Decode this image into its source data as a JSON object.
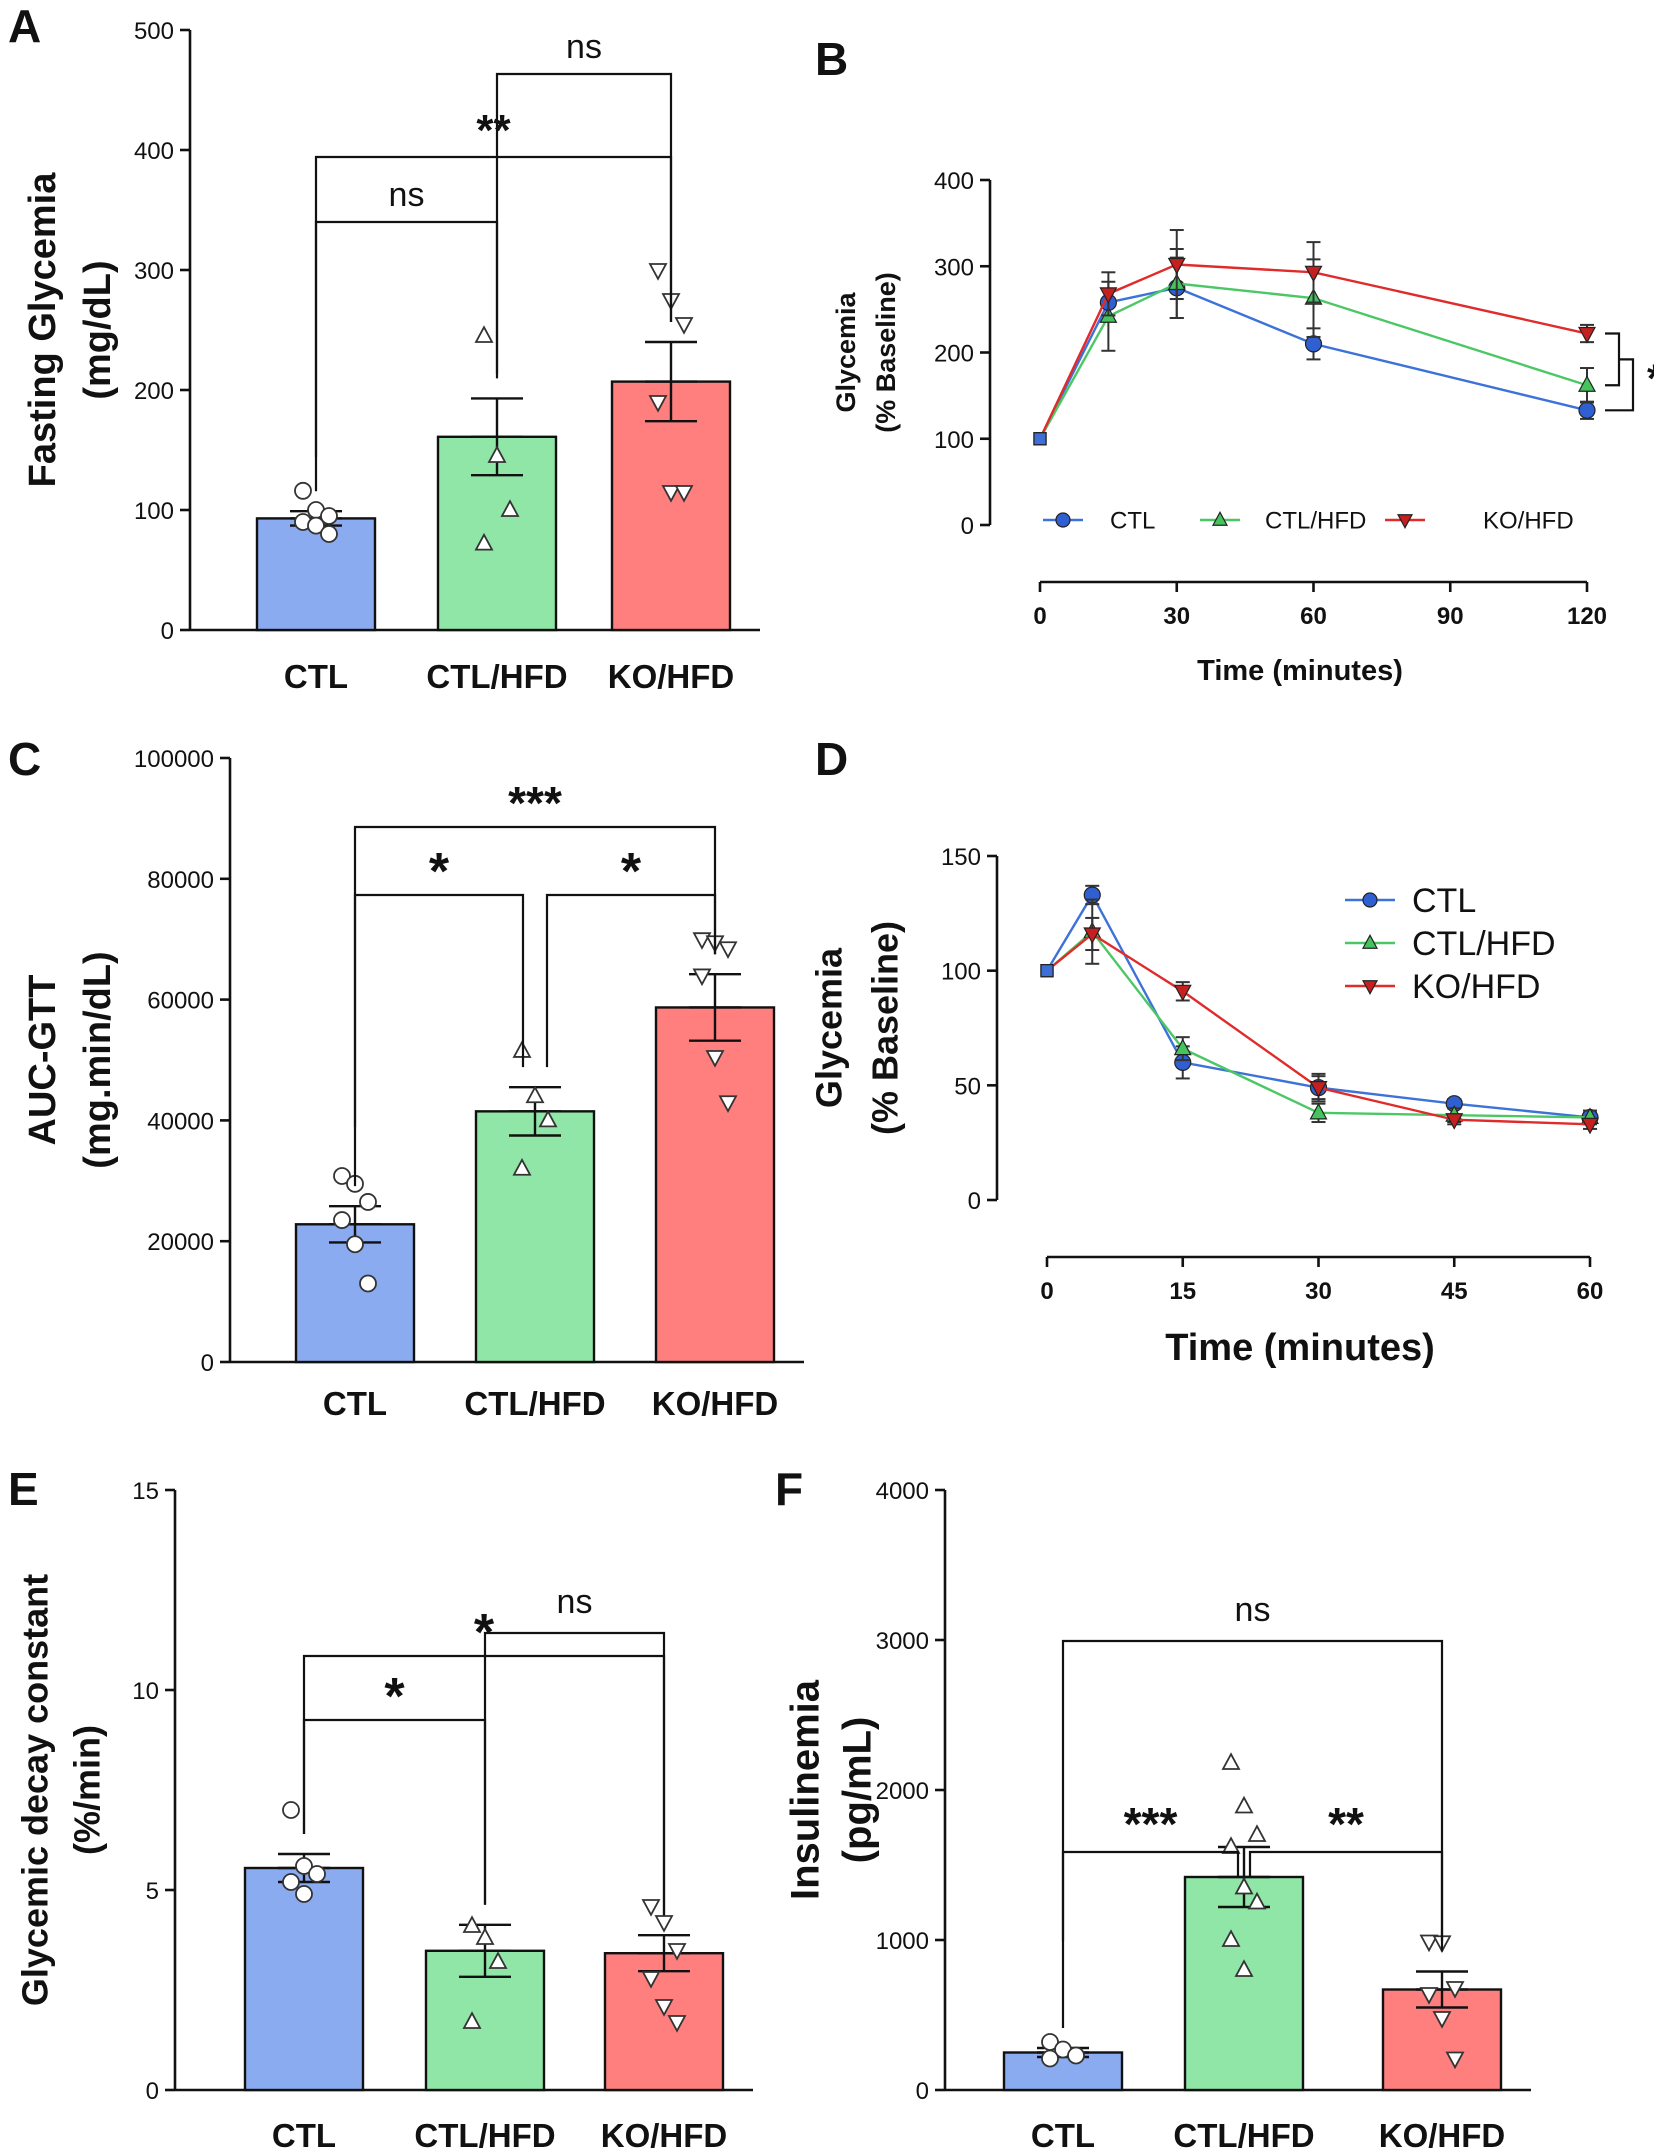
{
  "panels": {
    "A": {
      "letter": "A",
      "chart_data": {
        "type": "bar",
        "title": "",
        "ylabel_lines": [
          "Fasting Glycemia",
          "(mg/dL)"
        ],
        "xlabel": "",
        "categories": [
          "CTL",
          "CTL/HFD",
          "KO/HFD"
        ],
        "colors": [
          "#8aabf0",
          "#8fe6a6",
          "#ff7f7f"
        ],
        "markers": [
          "circle",
          "triangle-up",
          "triangle-down"
        ],
        "means": [
          93,
          161,
          207
        ],
        "sem": [
          6,
          32,
          33
        ],
        "points": [
          [
            116,
            100,
            95,
            90,
            87,
            80
          ],
          [
            245,
            145,
            100,
            72
          ],
          [
            300,
            275,
            255,
            190,
            115,
            115
          ]
        ],
        "ylim": [
          0,
          500
        ],
        "yticks": [
          0,
          100,
          200,
          300,
          400,
          500
        ],
        "ytick_labels": [
          "0",
          "100",
          "200",
          "300",
          "400",
          "500"
        ],
        "comparisons": [
          {
            "from": 0,
            "to": 1,
            "label": "ns"
          },
          {
            "from": 0,
            "to": 2,
            "label": "**"
          },
          {
            "from": 1,
            "to": 2,
            "label": "ns"
          }
        ]
      }
    },
    "B": {
      "letter": "B",
      "chart_data": {
        "type": "line",
        "ylabel_lines": [
          "Glycemia",
          "(% Baseline)"
        ],
        "xlabel": "Time (minutes)",
        "x": [
          0,
          15,
          30,
          60,
          120
        ],
        "xticks": [
          0,
          30,
          60,
          90,
          120
        ],
        "xtick_labels": [
          "0",
          "30",
          "60",
          "90",
          "120"
        ],
        "yticks": [
          0,
          100,
          200,
          300,
          400
        ],
        "ytick_labels": [
          "0",
          "100",
          "200",
          "300",
          "400"
        ],
        "ylim": [
          0,
          400
        ],
        "xlim": [
          0,
          120
        ],
        "series": [
          {
            "name": "CTL",
            "color": "#2f5fd0",
            "line_color": "#3d72d9",
            "marker": "circle",
            "values": [
              100,
              258,
              275,
              210,
              133
            ],
            "err": [
              0,
              15,
              35,
              18,
              10
            ]
          },
          {
            "name": "CTL/HFD",
            "color": "#45c45e",
            "line_color": "#4cc766",
            "marker": "triangle-up",
            "values": [
              100,
              242,
              280,
              263,
              162
            ],
            "err": [
              0,
              40,
              40,
              45,
              20
            ]
          },
          {
            "name": "KO/HFD",
            "color": "#c42020",
            "line_color": "#e02b2b",
            "marker": "triangle-down",
            "values": [
              100,
              268,
              302,
              293,
              222
            ],
            "err": [
              0,
              25,
              40,
              35,
              10
            ]
          }
        ],
        "significance": "*"
      }
    },
    "C": {
      "letter": "C",
      "chart_data": {
        "type": "bar",
        "ylabel_lines": [
          "AUC-GTT",
          "(mg.min/dL)"
        ],
        "xlabel": "",
        "categories": [
          "CTL",
          "CTL/HFD",
          "KO/HFD"
        ],
        "colors": [
          "#8aabf0",
          "#8fe6a6",
          "#ff7f7f"
        ],
        "markers": [
          "circle",
          "triangle-up",
          "triangle-down"
        ],
        "means": [
          22800,
          41500,
          58700
        ],
        "sem": [
          3000,
          4000,
          5500
        ],
        "points": [
          [
            30800,
            29500,
            26500,
            23500,
            19500,
            13000
          ],
          [
            51500,
            44000,
            40000,
            32000
          ],
          [
            70000,
            69500,
            68500,
            64000,
            50500,
            43000
          ]
        ],
        "ylim": [
          0,
          100000
        ],
        "yticks": [
          0,
          20000,
          40000,
          60000,
          80000,
          100000
        ],
        "ytick_labels": [
          "0",
          "20000",
          "40000",
          "60000",
          "80000",
          "100000"
        ],
        "comparisons": [
          {
            "from": 0,
            "to": 1,
            "label": "*"
          },
          {
            "from": 1,
            "to": 2,
            "label": "*"
          },
          {
            "from": 0,
            "to": 2,
            "label": "***"
          }
        ]
      }
    },
    "D": {
      "letter": "D",
      "chart_data": {
        "type": "line",
        "ylabel_lines": [
          "Glycemia",
          "(% Baseline)"
        ],
        "xlabel": "Time (minutes)",
        "x": [
          0,
          5,
          15,
          30,
          45,
          60
        ],
        "xticks": [
          0,
          15,
          30,
          45,
          60
        ],
        "xtick_labels": [
          "0",
          "15",
          "30",
          "45",
          "60"
        ],
        "yticks": [
          0,
          50,
          100,
          150
        ],
        "ytick_labels": [
          "0",
          "50",
          "100",
          "150"
        ],
        "ylim": [
          0,
          150
        ],
        "xlim": [
          0,
          60
        ],
        "series": [
          {
            "name": "CTL",
            "color": "#2f5fd0",
            "line_color": "#3d72d9",
            "marker": "circle",
            "values": [
              100,
              133,
              60,
              49,
              42,
              36
            ],
            "err": [
              0,
              4,
              7,
              6,
              2,
              2
            ]
          },
          {
            "name": "CTL/HFD",
            "color": "#45c45e",
            "line_color": "#4cc766",
            "marker": "triangle-up",
            "values": [
              100,
              117,
              66,
              38,
              37,
              36
            ],
            "err": [
              0,
              14,
              5,
              4,
              3,
              3
            ]
          },
          {
            "name": "KO/HFD",
            "color": "#c42020",
            "line_color": "#e02b2b",
            "marker": "triangle-down",
            "values": [
              100,
              116,
              91,
              49,
              35,
              33
            ],
            "err": [
              0,
              7,
              4,
              5,
              2,
              2
            ]
          }
        ]
      }
    },
    "E": {
      "letter": "E",
      "chart_data": {
        "type": "bar",
        "ylabel_lines": [
          "Glycemic decay constant",
          "(%/min)"
        ],
        "xlabel": "",
        "categories": [
          "CTL",
          "CTL/HFD",
          "KO/HFD"
        ],
        "colors": [
          "#8aabf0",
          "#8fe6a6",
          "#ff7f7f"
        ],
        "markers": [
          "circle",
          "triangle-up",
          "triangle-down"
        ],
        "means": [
          5.55,
          3.48,
          3.42
        ],
        "sem": [
          0.35,
          0.65,
          0.45
        ],
        "points": [
          [
            7.0,
            5.6,
            5.4,
            5.2,
            4.9
          ],
          [
            4.1,
            3.8,
            3.2,
            1.7
          ],
          [
            4.6,
            4.2,
            3.5,
            2.8,
            2.1,
            1.7
          ]
        ],
        "ylim": [
          0,
          15
        ],
        "yticks": [
          0,
          5,
          10,
          15
        ],
        "ytick_labels": [
          "0",
          "5",
          "10",
          "15"
        ],
        "comparisons": [
          {
            "from": 0,
            "to": 1,
            "label": "*"
          },
          {
            "from": 0,
            "to": 2,
            "label": "*"
          },
          {
            "from": 1,
            "to": 2,
            "label": "ns"
          }
        ]
      }
    },
    "F": {
      "letter": "F",
      "chart_data": {
        "type": "bar",
        "ylabel_lines": [
          "Insulinemia",
          "(pg/mL)"
        ],
        "xlabel": "",
        "categories": [
          "CTL",
          "CTL/HFD",
          "KO/HFD"
        ],
        "colors": [
          "#8aabf0",
          "#8fe6a6",
          "#ff7f7f"
        ],
        "markers": [
          "circle",
          "triangle-up",
          "triangle-down"
        ],
        "means": [
          250,
          1420,
          670
        ],
        "sem": [
          30,
          200,
          120
        ],
        "points": [
          [
            320,
            270,
            230,
            210
          ],
          [
            2180,
            1890,
            1700,
            1620,
            1350,
            1250,
            1000,
            800
          ],
          [
            990,
            985,
            680,
            640,
            480,
            210
          ]
        ],
        "ylim": [
          0,
          4000
        ],
        "yticks": [
          0,
          1000,
          2000,
          3000,
          4000
        ],
        "ytick_labels": [
          "0",
          "1000",
          "2000",
          "3000",
          "4000"
        ],
        "comparisons": [
          {
            "from": 0,
            "to": 1,
            "label": "***"
          },
          {
            "from": 1,
            "to": 2,
            "label": "**"
          },
          {
            "from": 0,
            "to": 2,
            "label": "ns"
          }
        ]
      }
    }
  }
}
